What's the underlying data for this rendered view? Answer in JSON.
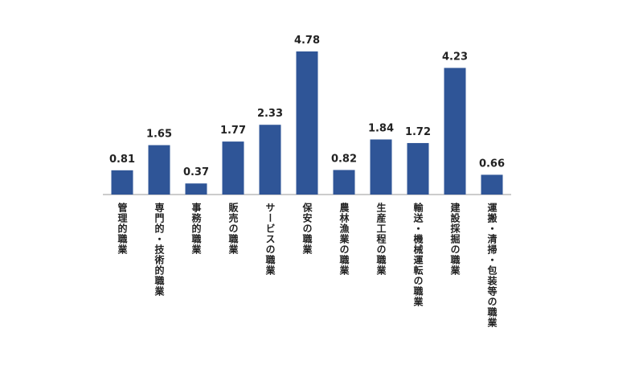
{
  "chart_data": {
    "type": "bar",
    "categories": [
      "管理的職業",
      "専門的・技術的職業",
      "事務的職業",
      "販売の職業",
      "サービスの職業",
      "保安の職業",
      "農林漁業の職業",
      "生産工程の職業",
      "輸送・機械運転の職業",
      "建設採掘の職業",
      "運搬・清掃・包装等の職業"
    ],
    "values": [
      0.81,
      1.65,
      0.37,
      1.77,
      2.33,
      4.78,
      0.82,
      1.84,
      1.72,
      4.23,
      0.66
    ],
    "value_labels": [
      "0.81",
      "1.65",
      "0.37",
      "1.77",
      "2.33",
      "4.78",
      "0.82",
      "1.84",
      "1.72",
      "4.23",
      "0.66"
    ],
    "color": "#2f5597"
  }
}
